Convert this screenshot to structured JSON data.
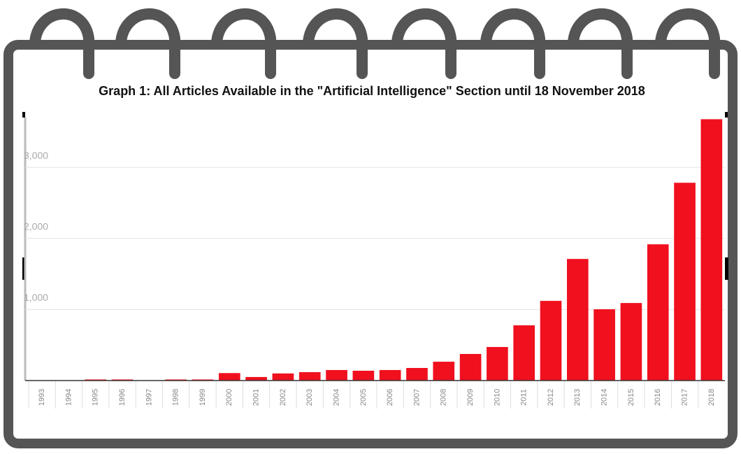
{
  "chart_data": {
    "type": "bar",
    "title": "Graph 1: All Articles Available in the \"Artificial Intelligence\" Section until 18 November 2018",
    "categories": [
      "1993",
      "1994",
      "1995",
      "1996",
      "1997",
      "1998",
      "1999",
      "2000",
      "2001",
      "2002",
      "2003",
      "2004",
      "2005",
      "2006",
      "2007",
      "2008",
      "2009",
      "2010",
      "2011",
      "2012",
      "2013",
      "2014",
      "2015",
      "2016",
      "2017",
      "2018"
    ],
    "values": [
      0,
      0,
      15,
      15,
      0,
      15,
      15,
      105,
      50,
      100,
      118,
      148,
      138,
      148,
      177,
      265,
      374,
      472,
      777,
      1121,
      1711,
      1003,
      1091,
      1917,
      2783,
      3677
    ],
    "color": "#f0101e",
    "ylim": [
      0,
      3760
    ],
    "yticks": [
      {
        "value": 1000,
        "label": "1,000"
      },
      {
        "value": 2000,
        "label": "2,000"
      },
      {
        "value": 3000,
        "label": "3,000"
      }
    ],
    "grid": true
  }
}
